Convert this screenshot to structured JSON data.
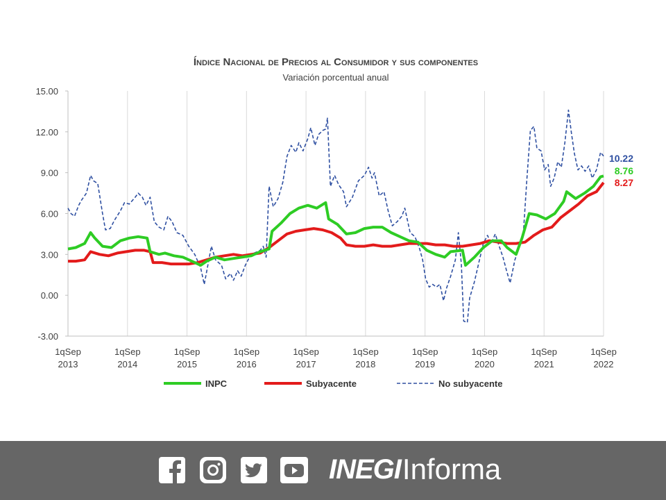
{
  "chart_data": {
    "type": "line",
    "title": "Índice Nacional de Precios al Consumidor y sus componentes",
    "subtitle": "Variación porcentual anual",
    "ylim": [
      -3,
      15
    ],
    "yticks": [
      "15.00",
      "12.00",
      "9.00",
      "6.00",
      "3.00",
      "0.00",
      "-3.00"
    ],
    "xlim": [
      2013.67,
      2022.67
    ],
    "xticks": [
      {
        "line1": "1qSep",
        "line2": "2013",
        "x": 2013.67
      },
      {
        "line1": "1qSep",
        "line2": "2014",
        "x": 2014.67
      },
      {
        "line1": "1qSep",
        "line2": "2015",
        "x": 2015.67
      },
      {
        "line1": "1qSep",
        "line2": "2016",
        "x": 2016.67
      },
      {
        "line1": "1qSep",
        "line2": "2017",
        "x": 2017.67
      },
      {
        "line1": "1qSep",
        "line2": "2018",
        "x": 2018.67
      },
      {
        "line1": "1qSep",
        "line2": "2019",
        "x": 2019.67
      },
      {
        "line1": "1qSep",
        "line2": "2020",
        "x": 2020.67
      },
      {
        "line1": "1qSep",
        "line2": "2021",
        "x": 2021.67
      },
      {
        "line1": "1qSep",
        "line2": "2022",
        "x": 2022.67
      }
    ],
    "grid": "vertical",
    "legend_position": "bottom",
    "series": [
      {
        "name": "INPC",
        "color": "#2ecc24",
        "style": "solid",
        "end_label": "8.76",
        "points": [
          [
            2013.67,
            3.4
          ],
          [
            2013.8,
            3.5
          ],
          [
            2013.95,
            3.8
          ],
          [
            2014.05,
            4.6
          ],
          [
            2014.12,
            4.2
          ],
          [
            2014.25,
            3.6
          ],
          [
            2014.4,
            3.5
          ],
          [
            2014.55,
            4.0
          ],
          [
            2014.7,
            4.2
          ],
          [
            2014.85,
            4.3
          ],
          [
            2015.0,
            4.2
          ],
          [
            2015.05,
            3.2
          ],
          [
            2015.2,
            3.0
          ],
          [
            2015.3,
            3.1
          ],
          [
            2015.45,
            2.9
          ],
          [
            2015.6,
            2.8
          ],
          [
            2015.75,
            2.5
          ],
          [
            2015.9,
            2.2
          ],
          [
            2016.0,
            2.5
          ],
          [
            2016.15,
            2.8
          ],
          [
            2016.3,
            2.6
          ],
          [
            2016.45,
            2.7
          ],
          [
            2016.6,
            2.8
          ],
          [
            2016.75,
            2.9
          ],
          [
            2016.9,
            3.2
          ],
          [
            2017.05,
            3.4
          ],
          [
            2017.1,
            4.7
          ],
          [
            2017.25,
            5.3
          ],
          [
            2017.4,
            6.0
          ],
          [
            2017.55,
            6.4
          ],
          [
            2017.7,
            6.6
          ],
          [
            2017.85,
            6.4
          ],
          [
            2018.0,
            6.8
          ],
          [
            2018.05,
            5.6
          ],
          [
            2018.2,
            5.2
          ],
          [
            2018.35,
            4.5
          ],
          [
            2018.5,
            4.6
          ],
          [
            2018.65,
            4.9
          ],
          [
            2018.8,
            5.0
          ],
          [
            2018.95,
            5.0
          ],
          [
            2019.1,
            4.6
          ],
          [
            2019.25,
            4.3
          ],
          [
            2019.4,
            4.0
          ],
          [
            2019.55,
            3.9
          ],
          [
            2019.7,
            3.3
          ],
          [
            2019.85,
            3.0
          ],
          [
            2020.0,
            2.8
          ],
          [
            2020.1,
            3.2
          ],
          [
            2020.3,
            3.3
          ],
          [
            2020.35,
            2.2
          ],
          [
            2020.5,
            2.8
          ],
          [
            2020.65,
            3.5
          ],
          [
            2020.8,
            4.0
          ],
          [
            2020.95,
            4.0
          ],
          [
            2021.05,
            3.5
          ],
          [
            2021.2,
            3.0
          ],
          [
            2021.3,
            4.2
          ],
          [
            2021.42,
            6.0
          ],
          [
            2021.55,
            5.9
          ],
          [
            2021.7,
            5.6
          ],
          [
            2021.85,
            6.0
          ],
          [
            2022.0,
            6.9
          ],
          [
            2022.05,
            7.6
          ],
          [
            2022.2,
            7.1
          ],
          [
            2022.35,
            7.5
          ],
          [
            2022.5,
            8.0
          ],
          [
            2022.62,
            8.7
          ],
          [
            2022.67,
            8.76
          ]
        ]
      },
      {
        "name": "Subyacente",
        "color": "#e31b1b",
        "style": "solid",
        "end_label": "8.27",
        "points": [
          [
            2013.67,
            2.5
          ],
          [
            2013.8,
            2.5
          ],
          [
            2013.95,
            2.6
          ],
          [
            2014.05,
            3.2
          ],
          [
            2014.2,
            3.0
          ],
          [
            2014.35,
            2.9
          ],
          [
            2014.5,
            3.1
          ],
          [
            2014.65,
            3.2
          ],
          [
            2014.8,
            3.3
          ],
          [
            2014.95,
            3.3
          ],
          [
            2015.05,
            3.2
          ],
          [
            2015.1,
            2.4
          ],
          [
            2015.25,
            2.4
          ],
          [
            2015.4,
            2.3
          ],
          [
            2015.55,
            2.3
          ],
          [
            2015.7,
            2.3
          ],
          [
            2015.85,
            2.4
          ],
          [
            2016.0,
            2.6
          ],
          [
            2016.15,
            2.8
          ],
          [
            2016.3,
            2.9
          ],
          [
            2016.45,
            3.0
          ],
          [
            2016.6,
            2.9
          ],
          [
            2016.75,
            3.0
          ],
          [
            2016.9,
            3.1
          ],
          [
            2017.05,
            3.5
          ],
          [
            2017.2,
            4.0
          ],
          [
            2017.35,
            4.5
          ],
          [
            2017.5,
            4.7
          ],
          [
            2017.65,
            4.8
          ],
          [
            2017.8,
            4.9
          ],
          [
            2017.95,
            4.8
          ],
          [
            2018.1,
            4.6
          ],
          [
            2018.25,
            4.2
          ],
          [
            2018.35,
            3.7
          ],
          [
            2018.5,
            3.6
          ],
          [
            2018.65,
            3.6
          ],
          [
            2018.8,
            3.7
          ],
          [
            2018.95,
            3.6
          ],
          [
            2019.1,
            3.6
          ],
          [
            2019.25,
            3.7
          ],
          [
            2019.4,
            3.8
          ],
          [
            2019.55,
            3.8
          ],
          [
            2019.7,
            3.8
          ],
          [
            2019.85,
            3.7
          ],
          [
            2020.0,
            3.7
          ],
          [
            2020.15,
            3.6
          ],
          [
            2020.3,
            3.6
          ],
          [
            2020.45,
            3.7
          ],
          [
            2020.6,
            3.8
          ],
          [
            2020.75,
            4.0
          ],
          [
            2020.9,
            3.9
          ],
          [
            2021.05,
            3.8
          ],
          [
            2021.2,
            3.8
          ],
          [
            2021.35,
            3.9
          ],
          [
            2021.5,
            4.4
          ],
          [
            2021.65,
            4.8
          ],
          [
            2021.8,
            5.0
          ],
          [
            2021.95,
            5.7
          ],
          [
            2022.1,
            6.2
          ],
          [
            2022.25,
            6.7
          ],
          [
            2022.4,
            7.3
          ],
          [
            2022.55,
            7.6
          ],
          [
            2022.67,
            8.27
          ]
        ]
      },
      {
        "name": "No subyacente",
        "color": "#2e4fa1",
        "style": "dashed",
        "end_label": "10.22",
        "points": [
          [
            2013.67,
            6.4
          ],
          [
            2013.72,
            6.0
          ],
          [
            2013.78,
            5.8
          ],
          [
            2013.85,
            6.6
          ],
          [
            2013.9,
            7.0
          ],
          [
            2013.98,
            7.5
          ],
          [
            2014.05,
            8.8
          ],
          [
            2014.1,
            8.4
          ],
          [
            2014.17,
            8.2
          ],
          [
            2014.25,
            6.0
          ],
          [
            2014.3,
            4.8
          ],
          [
            2014.38,
            4.9
          ],
          [
            2014.45,
            5.5
          ],
          [
            2014.55,
            6.2
          ],
          [
            2014.62,
            6.8
          ],
          [
            2014.7,
            6.7
          ],
          [
            2014.8,
            7.2
          ],
          [
            2014.85,
            7.5
          ],
          [
            2014.92,
            7.2
          ],
          [
            2014.98,
            6.6
          ],
          [
            2015.05,
            7.2
          ],
          [
            2015.12,
            5.4
          ],
          [
            2015.2,
            5.0
          ],
          [
            2015.28,
            4.8
          ],
          [
            2015.35,
            5.8
          ],
          [
            2015.42,
            5.4
          ],
          [
            2015.5,
            4.6
          ],
          [
            2015.6,
            4.4
          ],
          [
            2015.7,
            3.6
          ],
          [
            2015.8,
            3.0
          ],
          [
            2015.9,
            2.0
          ],
          [
            2015.96,
            0.8
          ],
          [
            2016.02,
            2.2
          ],
          [
            2016.08,
            3.6
          ],
          [
            2016.15,
            2.6
          ],
          [
            2016.25,
            2.2
          ],
          [
            2016.32,
            1.2
          ],
          [
            2016.4,
            1.6
          ],
          [
            2016.45,
            1.1
          ],
          [
            2016.52,
            1.8
          ],
          [
            2016.58,
            1.4
          ],
          [
            2016.65,
            2.2
          ],
          [
            2016.72,
            2.8
          ],
          [
            2016.8,
            3.1
          ],
          [
            2016.9,
            3.3
          ],
          [
            2016.95,
            3.6
          ],
          [
            2017.0,
            2.8
          ],
          [
            2017.05,
            8.0
          ],
          [
            2017.12,
            6.5
          ],
          [
            2017.2,
            7.1
          ],
          [
            2017.28,
            8.3
          ],
          [
            2017.35,
            10.2
          ],
          [
            2017.42,
            11.0
          ],
          [
            2017.5,
            10.5
          ],
          [
            2017.55,
            11.2
          ],
          [
            2017.62,
            10.6
          ],
          [
            2017.7,
            11.5
          ],
          [
            2017.75,
            12.3
          ],
          [
            2017.82,
            11.0
          ],
          [
            2017.88,
            11.8
          ],
          [
            2017.95,
            12.1
          ],
          [
            2018.0,
            12.2
          ],
          [
            2018.03,
            13.0
          ],
          [
            2018.08,
            8.0
          ],
          [
            2018.15,
            8.8
          ],
          [
            2018.22,
            8.1
          ],
          [
            2018.3,
            7.6
          ],
          [
            2018.35,
            6.5
          ],
          [
            2018.45,
            7.2
          ],
          [
            2018.55,
            8.4
          ],
          [
            2018.65,
            8.8
          ],
          [
            2018.72,
            9.4
          ],
          [
            2018.78,
            8.6
          ],
          [
            2018.82,
            9.0
          ],
          [
            2018.9,
            7.3
          ],
          [
            2018.98,
            7.6
          ],
          [
            2019.05,
            6.2
          ],
          [
            2019.12,
            5.1
          ],
          [
            2019.2,
            5.4
          ],
          [
            2019.28,
            5.8
          ],
          [
            2019.33,
            6.4
          ],
          [
            2019.42,
            4.6
          ],
          [
            2019.5,
            4.3
          ],
          [
            2019.58,
            3.4
          ],
          [
            2019.63,
            2.6
          ],
          [
            2019.68,
            1.2
          ],
          [
            2019.74,
            0.6
          ],
          [
            2019.8,
            0.8
          ],
          [
            2019.86,
            0.6
          ],
          [
            2019.92,
            0.8
          ],
          [
            2019.98,
            -0.4
          ],
          [
            2020.03,
            0.5
          ],
          [
            2020.1,
            1.4
          ],
          [
            2020.18,
            2.6
          ],
          [
            2020.23,
            4.6
          ],
          [
            2020.28,
            2.3
          ],
          [
            2020.32,
            -1.9
          ],
          [
            2020.38,
            -2.0
          ],
          [
            2020.42,
            -0.2
          ],
          [
            2020.5,
            1.0
          ],
          [
            2020.58,
            2.5
          ],
          [
            2020.65,
            3.8
          ],
          [
            2020.72,
            4.4
          ],
          [
            2020.78,
            3.8
          ],
          [
            2020.85,
            4.5
          ],
          [
            2020.9,
            3.8
          ],
          [
            2020.98,
            2.8
          ],
          [
            2021.04,
            1.8
          ],
          [
            2021.1,
            0.9
          ],
          [
            2021.18,
            2.6
          ],
          [
            2021.25,
            3.5
          ],
          [
            2021.32,
            4.4
          ],
          [
            2021.38,
            8.4
          ],
          [
            2021.44,
            12.1
          ],
          [
            2021.5,
            12.4
          ],
          [
            2021.55,
            10.8
          ],
          [
            2021.62,
            10.6
          ],
          [
            2021.68,
            9.2
          ],
          [
            2021.74,
            9.6
          ],
          [
            2021.78,
            8.0
          ],
          [
            2021.84,
            8.6
          ],
          [
            2021.9,
            9.8
          ],
          [
            2021.96,
            9.4
          ],
          [
            2022.02,
            11.2
          ],
          [
            2022.08,
            13.6
          ],
          [
            2022.13,
            11.9
          ],
          [
            2022.18,
            10.4
          ],
          [
            2022.24,
            9.2
          ],
          [
            2022.3,
            9.5
          ],
          [
            2022.36,
            9.1
          ],
          [
            2022.42,
            9.5
          ],
          [
            2022.48,
            8.6
          ],
          [
            2022.55,
            9.2
          ],
          [
            2022.62,
            10.5
          ],
          [
            2022.67,
            10.22
          ]
        ]
      }
    ]
  },
  "footer": {
    "background": "#666666",
    "icons": [
      "facebook-icon",
      "instagram-icon",
      "twitter-icon",
      "youtube-icon"
    ],
    "brand_bold": "INEGI",
    "brand_light": "Informa"
  }
}
